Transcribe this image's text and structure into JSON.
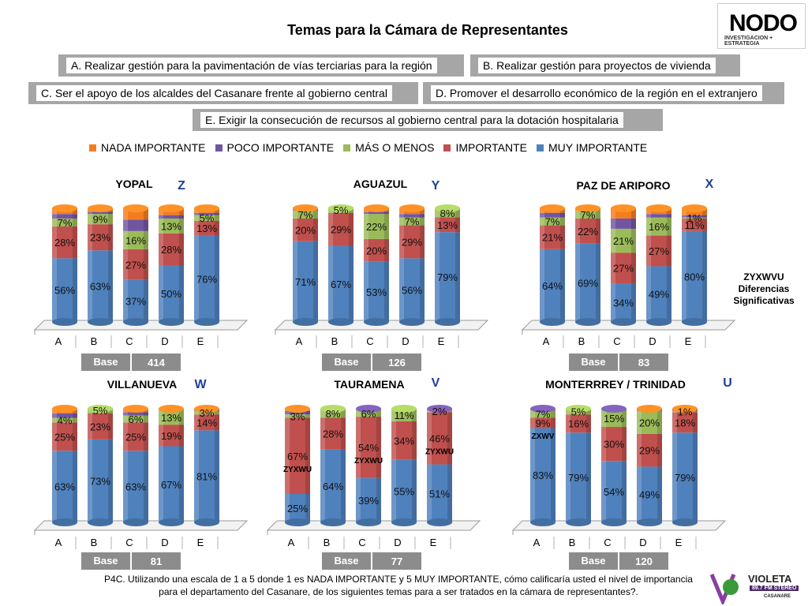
{
  "title": "Temas para la Cámara de Representantes",
  "options": [
    {
      "id": "A",
      "text": "A. Realizar gestión para la pavimentación de vías terciarias para la región"
    },
    {
      "id": "B",
      "text": "B. Realizar gestión para proyectos de vivienda"
    },
    {
      "id": "C",
      "text": "C. Ser el apoyo de los alcaldes del Casanare frente al gobierno central"
    },
    {
      "id": "D",
      "text": "D. Promover el desarrollo económico de la región en el extranjero"
    },
    {
      "id": "E",
      "text": "E. Exigir la consecución de recursos al gobierno central para la dotación hospitalaria"
    }
  ],
  "legend": [
    {
      "name": "NADA IMPORTANTE",
      "color": "#f47c20"
    },
    {
      "name": "POCO IMPORTANTE",
      "color": "#7155a1"
    },
    {
      "name": "MÁS O MENOS",
      "color": "#9bbb59"
    },
    {
      "name": "IMPORTANTE",
      "color": "#c0504d"
    },
    {
      "name": "MUY IMPORTANTE",
      "color": "#4f81bd"
    }
  ],
  "significance_note": [
    "ZYXWVU",
    "Diferencias",
    "Significativas"
  ],
  "base_label": "Base",
  "footnote": "P4C. Utilizando una escala de 1 a 5 donde 1 es NADA IMPORTANTE y 5 MUY IMPORTANTE, cómo calificaría usted el nivel de importancia para el departamento del Casanare, de los siguientes temas para a ser tratados en la cámara de representantes?.",
  "logo": {
    "name": "NODO",
    "sub": "INVESTIGACION + ESTRATEGIA"
  },
  "logo2": {
    "name": "VIOLETA",
    "sub": "89.7 FM  STEREO",
    "sub2": "CASANARE"
  },
  "chart_data": [
    {
      "type": "bar",
      "stacked": true,
      "title": "YOPAL",
      "letter": "Z",
      "base": "414",
      "categories": [
        "A",
        "B",
        "C",
        "D",
        "E"
      ],
      "series": [
        {
          "name": "MUY IMPORTANTE",
          "values": [
            56,
            63,
            37,
            50,
            76
          ]
        },
        {
          "name": "IMPORTANTE",
          "values": [
            28,
            23,
            27,
            28,
            13
          ]
        },
        {
          "name": "MÁS O MENOS",
          "values": [
            7,
            9,
            16,
            13,
            5
          ]
        },
        {
          "name": "POCO IMPORTANTE",
          "values": [
            4,
            2,
            10,
            3,
            2
          ]
        },
        {
          "name": "NADA IMPORTANTE",
          "values": [
            5,
            3,
            10,
            6,
            4
          ]
        }
      ],
      "labels": {
        "MUY IMPORTANTE": [
          "56%",
          "63%",
          "37%",
          "50%",
          "76%"
        ],
        "IMPORTANTE": [
          "28%",
          "23%",
          "27%",
          "28%",
          "13%"
        ],
        "MÁS O MENOS": [
          "7%",
          "9%",
          "16%",
          "13%",
          "5%"
        ]
      },
      "sig": [
        "",
        "",
        "",
        "",
        ""
      ]
    },
    {
      "type": "bar",
      "stacked": true,
      "title": "AGUAZUL",
      "letter": "Y",
      "base": "126",
      "categories": [
        "A",
        "B",
        "C",
        "D",
        "E"
      ],
      "series": [
        {
          "name": "MUY IMPORTANTE",
          "values": [
            71,
            67,
            53,
            56,
            79
          ]
        },
        {
          "name": "IMPORTANTE",
          "values": [
            20,
            29,
            20,
            29,
            13
          ]
        },
        {
          "name": "MÁS O MENOS",
          "values": [
            7,
            5,
            22,
            7,
            8
          ]
        },
        {
          "name": "POCO IMPORTANTE",
          "values": [
            1,
            0,
            2,
            3,
            0
          ]
        },
        {
          "name": "NADA IMPORTANTE",
          "values": [
            1,
            0,
            3,
            5,
            0
          ]
        }
      ],
      "labels": {
        "MUY IMPORTANTE": [
          "71%",
          "67%",
          "53%",
          "56%",
          "79%"
        ],
        "IMPORTANTE": [
          "20%",
          "29%",
          "20%",
          "29%",
          "13%"
        ],
        "MÁS O MENOS": [
          "7%",
          "5%",
          "22%",
          "7%",
          "8%"
        ]
      },
      "sig": [
        "",
        "",
        "",
        "",
        ""
      ]
    },
    {
      "type": "bar",
      "stacked": true,
      "title": "PAZ DE ARIPORO",
      "letter": "X",
      "base": "83",
      "categories": [
        "A",
        "B",
        "C",
        "D",
        "E"
      ],
      "series": [
        {
          "name": "MUY IMPORTANTE",
          "values": [
            64,
            69,
            34,
            49,
            80
          ]
        },
        {
          "name": "IMPORTANTE",
          "values": [
            21,
            22,
            27,
            27,
            11
          ]
        },
        {
          "name": "MÁS O MENOS",
          "values": [
            7,
            7,
            21,
            16,
            1
          ]
        },
        {
          "name": "POCO IMPORTANTE",
          "values": [
            4,
            0,
            9,
            3,
            2
          ]
        },
        {
          "name": "NADA IMPORTANTE",
          "values": [
            4,
            2,
            9,
            5,
            6
          ]
        }
      ],
      "labels": {
        "MUY IMPORTANTE": [
          "64%",
          "69%",
          "34%",
          "49%",
          "80%"
        ],
        "IMPORTANTE": [
          "21%",
          "22%",
          "27%",
          "27%",
          "11%"
        ],
        "MÁS O MENOS": [
          "7%",
          "7%",
          "21%",
          "16%",
          "1%"
        ]
      },
      "sig": [
        "",
        "",
        "",
        "",
        ""
      ]
    },
    {
      "type": "bar",
      "stacked": true,
      "title": "VILLANUEVA",
      "letter": "W",
      "base": "81",
      "categories": [
        "A",
        "B",
        "C",
        "D",
        "E"
      ],
      "series": [
        {
          "name": "MUY IMPORTANTE",
          "values": [
            63,
            73,
            63,
            67,
            81
          ]
        },
        {
          "name": "IMPORTANTE",
          "values": [
            25,
            23,
            25,
            19,
            14
          ]
        },
        {
          "name": "MÁS O MENOS",
          "values": [
            4,
            5,
            6,
            13,
            3
          ]
        },
        {
          "name": "POCO IMPORTANTE",
          "values": [
            4,
            0,
            3,
            0,
            1
          ]
        },
        {
          "name": "NADA IMPORTANTE",
          "values": [
            4,
            0,
            3,
            1,
            1
          ]
        }
      ],
      "labels": {
        "MUY IMPORTANTE": [
          "63%",
          "73%",
          "63%",
          "67%",
          "81%"
        ],
        "IMPORTANTE": [
          "25%",
          "23%",
          "25%",
          "19%",
          "14%"
        ],
        "MÁS O MENOS": [
          "4%",
          "5%",
          "6%",
          "13%",
          "3%"
        ]
      },
      "sig": [
        "",
        "",
        "",
        "",
        ""
      ]
    },
    {
      "type": "bar",
      "stacked": true,
      "title": "TAURAMENA",
      "letter": "V",
      "base": "77",
      "categories": [
        "A",
        "B",
        "C",
        "D",
        "E"
      ],
      "series": [
        {
          "name": "MUY IMPORTANTE",
          "values": [
            25,
            64,
            39,
            55,
            51
          ]
        },
        {
          "name": "IMPORTANTE",
          "values": [
            67,
            28,
            54,
            34,
            46
          ]
        },
        {
          "name": "MÁS O MENOS",
          "values": [
            3,
            8,
            6,
            11,
            2
          ]
        },
        {
          "name": "POCO IMPORTANTE",
          "values": [
            3,
            0,
            1,
            0,
            1
          ]
        },
        {
          "name": "NADA IMPORTANTE",
          "values": [
            2,
            0,
            0,
            0,
            0
          ]
        }
      ],
      "labels": {
        "MUY IMPORTANTE": [
          "25%",
          "64%",
          "39%",
          "55%",
          "51%"
        ],
        "IMPORTANTE": [
          "67%",
          "28%",
          "54%",
          "34%",
          "46%"
        ],
        "MÁS O MENOS": [
          "3%",
          "8%",
          "6%",
          "11%",
          "2%"
        ]
      },
      "sig": [
        "ZYXWU",
        "",
        "ZYXWU",
        "",
        "ZYXWU"
      ]
    },
    {
      "type": "bar",
      "stacked": true,
      "title": "MONTERRREY / TRINIDAD",
      "letter": "U",
      "base": "120",
      "categories": [
        "A",
        "B",
        "C",
        "D",
        "E"
      ],
      "series": [
        {
          "name": "MUY IMPORTANTE",
          "values": [
            83,
            79,
            54,
            49,
            79
          ]
        },
        {
          "name": "IMPORTANTE",
          "values": [
            9,
            16,
            30,
            29,
            18
          ]
        },
        {
          "name": "MÁS O MENOS",
          "values": [
            7,
            5,
            15,
            20,
            1
          ]
        },
        {
          "name": "POCO IMPORTANTE",
          "values": [
            1,
            0,
            1,
            1,
            1
          ]
        },
        {
          "name": "NADA IMPORTANTE",
          "values": [
            0,
            0,
            0,
            1,
            1
          ]
        }
      ],
      "labels": {
        "MUY IMPORTANTE": [
          "83%",
          "79%",
          "54%",
          "49%",
          "79%"
        ],
        "IMPORTANTE": [
          "9%",
          "16%",
          "30%",
          "29%",
          "18%"
        ],
        "MÁS O MENOS": [
          "7%",
          "5%",
          "15%",
          "20%",
          "1%"
        ]
      },
      "sig": [
        "ZXWV",
        "",
        "",
        "",
        ""
      ]
    }
  ]
}
